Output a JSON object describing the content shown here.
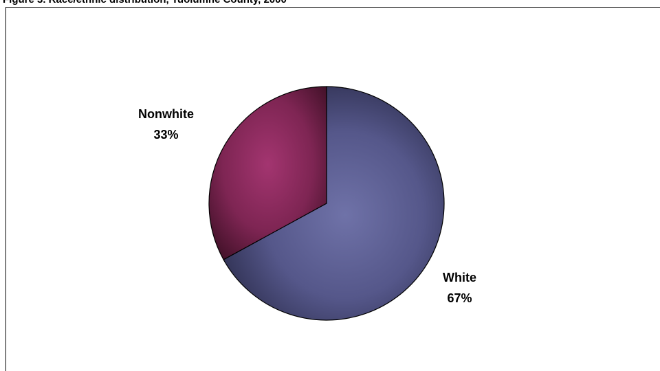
{
  "caption": "Figure 3. Race/ethnic distribution, Tuolumne County, 2000",
  "chart_data": {
    "type": "pie",
    "title": "",
    "categories": [
      "White",
      "Nonwhite"
    ],
    "values": [
      67,
      33
    ],
    "labels": [
      {
        "name": "White",
        "value": "67%"
      },
      {
        "name": "Nonwhite",
        "value": "33%"
      }
    ],
    "colors": [
      "#55578a",
      "#8e2a5e"
    ],
    "legend": "none",
    "style": "3d-shaded"
  }
}
